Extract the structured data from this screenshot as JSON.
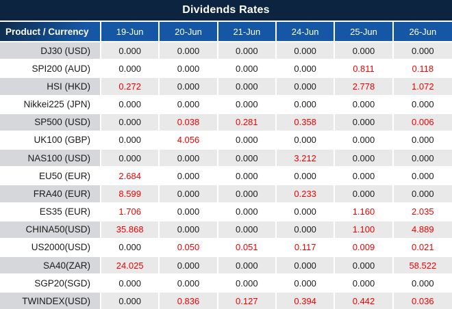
{
  "title": "Dividends Rates",
  "colors": {
    "title_bg": "#0d2440",
    "header_bg": "#1557a5",
    "corner_bg_dark": "#0e2a49",
    "header_text": "#ffffff",
    "row_gray_label": "#d5d7da",
    "row_gray_value": "#e9e9e9",
    "row_white": "#ffffff",
    "value_black": "#1a1a1a",
    "value_red": "#f20000",
    "grid_white": "#ffffff"
  },
  "table": {
    "corner_header": "Product / Currency",
    "date_headers": [
      "19-Jun",
      "20-Jun",
      "21-Jun",
      "24-Jun",
      "25-Jun",
      "26-Jun"
    ],
    "rows": [
      {
        "product": "DJ30 (USD)",
        "values": [
          "0.000",
          "0.000",
          "0.000",
          "0.000",
          "0.000",
          "0.000"
        ]
      },
      {
        "product": "SPI200 (AUD)",
        "values": [
          "0.000",
          "0.000",
          "0.000",
          "0.000",
          "0.811",
          "0.118"
        ]
      },
      {
        "product": "HSI (HKD)",
        "values": [
          "0.272",
          "0.000",
          "0.000",
          "0.000",
          "2.778",
          "1.072"
        ]
      },
      {
        "product": "Nikkei225 (JPN)",
        "values": [
          "0.000",
          "0.000",
          "0.000",
          "0.000",
          "0.000",
          "0.000"
        ]
      },
      {
        "product": "SP500 (USD)",
        "values": [
          "0.000",
          "0.038",
          "0.281",
          "0.358",
          "0.000",
          "0.006"
        ]
      },
      {
        "product": "UK100 (GBP)",
        "values": [
          "0.000",
          "4.056",
          "0.000",
          "0.000",
          "0.000",
          "0.000"
        ]
      },
      {
        "product": "NAS100 (USD)",
        "values": [
          "0.000",
          "0.000",
          "0.000",
          "3.212",
          "0.000",
          "0.000"
        ]
      },
      {
        "product": "EU50 (EUR)",
        "values": [
          "2.684",
          "0.000",
          "0.000",
          "0.000",
          "0.000",
          "0.000"
        ]
      },
      {
        "product": "FRA40 (EUR)",
        "values": [
          "8.599",
          "0.000",
          "0.000",
          "0.233",
          "0.000",
          "0.000"
        ]
      },
      {
        "product": "ES35 (EUR)",
        "values": [
          "1.706",
          "0.000",
          "0.000",
          "0.000",
          "1.160",
          "2.035"
        ]
      },
      {
        "product": "CHINA50(USD)",
        "values": [
          "35.868",
          "0.000",
          "0.000",
          "0.000",
          "1.100",
          "4.889"
        ]
      },
      {
        "product": "US2000(USD)",
        "values": [
          "0.000",
          "0.050",
          "0.051",
          "0.117",
          "0.009",
          "0.021"
        ]
      },
      {
        "product": "SA40(ZAR)",
        "values": [
          "24.025",
          "0.000",
          "0.000",
          "0.000",
          "0.000",
          "58.522"
        ]
      },
      {
        "product": "SGP20(SGD)",
        "values": [
          "0.000",
          "0.000",
          "0.000",
          "0.000",
          "0.000",
          "0.000"
        ]
      },
      {
        "product": "TWINDEX(USD)",
        "values": [
          "0.000",
          "0.836",
          "0.127",
          "0.394",
          "0.442",
          "0.036"
        ]
      }
    ]
  }
}
